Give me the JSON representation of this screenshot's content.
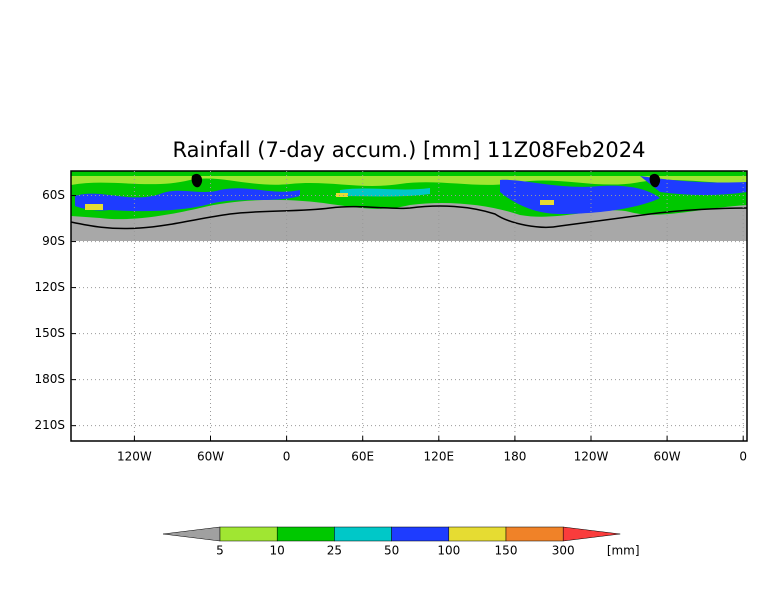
{
  "chart_data": {
    "type": "map",
    "title": "Rainfall (7-day accum.) [mm] 11Z08Feb2024",
    "xlim": [
      -170,
      363
    ],
    "ylim": [
      -220,
      -44
    ],
    "xticks": [
      {
        "value": -120,
        "label": "120W"
      },
      {
        "value": -60,
        "label": "60W"
      },
      0,
      {
        "value": 60,
        "label": "60E"
      },
      {
        "value": 120,
        "label": "120E"
      },
      180,
      {
        "value": 240,
        "label": "120W"
      },
      {
        "value": 300,
        "label": "60W"
      },
      {
        "value": 360,
        "label": "0"
      }
    ],
    "yticks": [
      {
        "value": -60,
        "label": "60S"
      },
      {
        "value": -90,
        "label": "90S"
      },
      {
        "value": -120,
        "label": "120S"
      },
      {
        "value": -150,
        "label": "150S"
      },
      {
        "value": -180,
        "label": "180S"
      },
      {
        "value": -210,
        "label": "210S"
      }
    ],
    "grid": true,
    "colorbar": {
      "levels": [
        5,
        10,
        25,
        50,
        100,
        150,
        300
      ],
      "units": "[mm]",
      "colors": [
        "#a0a0a0",
        "#a0e632",
        "#00c800",
        "#00c8c8",
        "#1e3cff",
        "#e6dc32",
        "#f08228",
        "#fa3c3c"
      ]
    }
  }
}
